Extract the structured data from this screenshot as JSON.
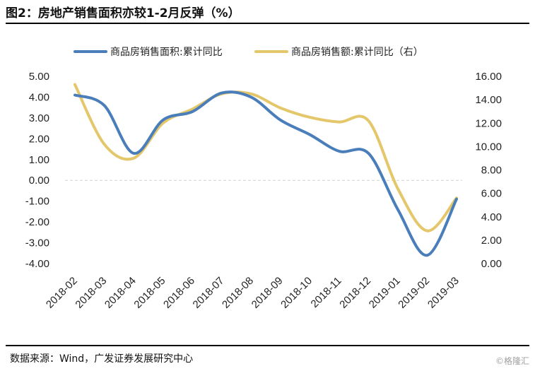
{
  "header": {
    "title": "图2：房地产销售面积亦较1-2月反弹（%）"
  },
  "footer": {
    "source": "数据来源：Wind，广发证券发展研究中心",
    "watermark": "©格隆汇"
  },
  "chart_data": {
    "type": "line",
    "x": [
      "2018-02",
      "2018-03",
      "2018-04",
      "2018-05",
      "2018-06",
      "2018-07",
      "2018-08",
      "2018-09",
      "2018-10",
      "2018-11",
      "2018-12",
      "2019-01",
      "2019-02",
      "2019-03"
    ],
    "series": [
      {
        "name": "商品房销售面积:累计同比",
        "axis": "left",
        "color": "#4a7ebb",
        "values": [
          4.1,
          3.6,
          1.3,
          2.9,
          3.3,
          4.2,
          4.0,
          2.9,
          2.2,
          1.4,
          1.3,
          -1.4,
          -3.6,
          -0.9
        ]
      },
      {
        "name": "商品房销售额:累计同比（右）",
        "axis": "right",
        "color": "#e4c76a",
        "values": [
          15.3,
          10.2,
          9.0,
          12.0,
          13.2,
          14.5,
          14.5,
          13.3,
          12.5,
          12.1,
          12.2,
          6.4,
          2.8,
          5.6
        ]
      }
    ],
    "y_left": {
      "min": -4,
      "max": 5,
      "ticks": [
        "5.00",
        "4.00",
        "3.00",
        "2.00",
        "1.00",
        "0.00",
        "-1.00",
        "-2.00",
        "-3.00",
        "-4.00"
      ]
    },
    "y_right": {
      "min": 0,
      "max": 16,
      "ticks": [
        "16.00",
        "14.00",
        "12.00",
        "10.00",
        "8.00",
        "6.00",
        "4.00",
        "2.00",
        "0.00"
      ]
    },
    "grid": false,
    "legend": "top"
  }
}
